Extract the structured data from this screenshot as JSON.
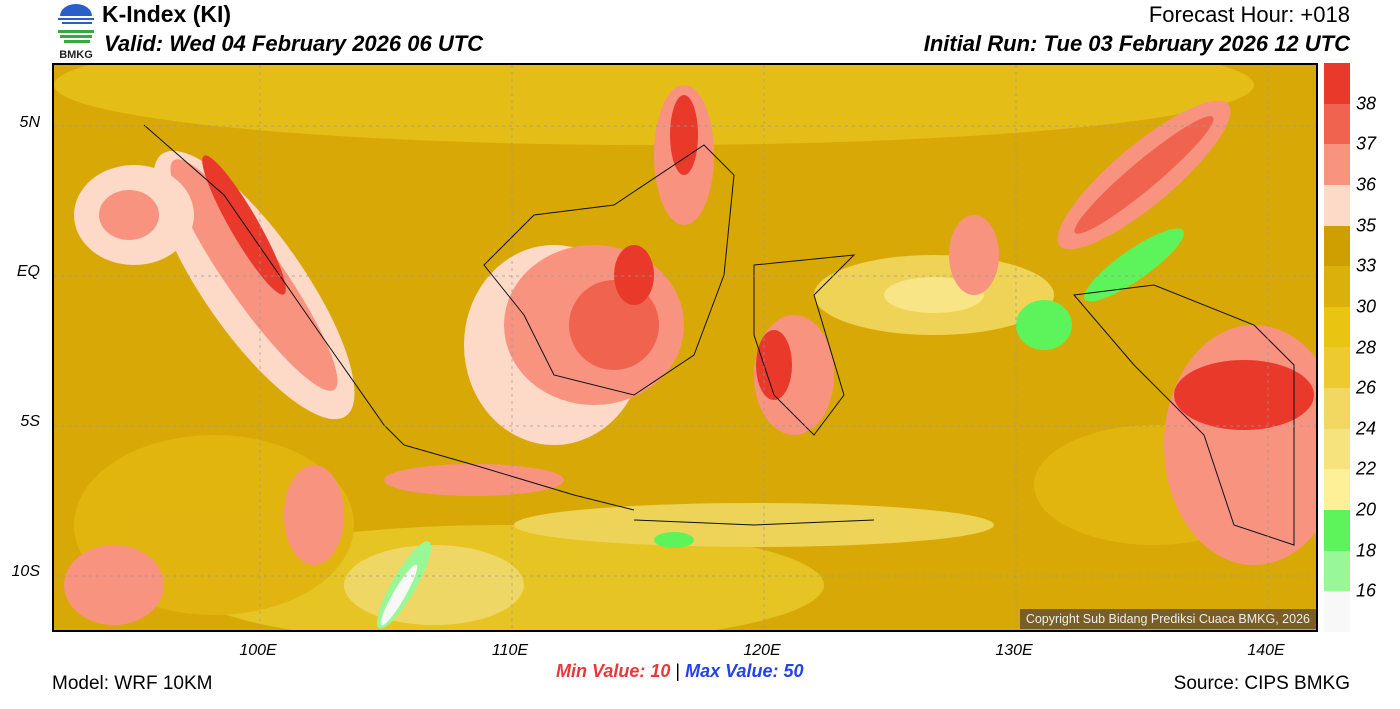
{
  "header": {
    "title": "K-Index (KI)",
    "valid": "Valid: Wed 04 February 2026 06 UTC",
    "forecast_hour": "Forecast Hour: +018",
    "initial_run": "Initial Run: Tue 03 February 2026 12 UTC",
    "logo_text": "BMKG"
  },
  "map": {
    "lat_labels": [
      "5N",
      "EQ",
      "5S",
      "10S"
    ],
    "lon_labels": [
      "100E",
      "110E",
      "120E",
      "130E",
      "140E"
    ],
    "copyright": "Copyright Sub Bidang Prediksi Cuaca BMKG, 2026"
  },
  "colorbar": {
    "labels": [
      "38",
      "37",
      "36",
      "35",
      "33",
      "30",
      "28",
      "26",
      "24",
      "22",
      "20",
      "18",
      "16"
    ],
    "colors": [
      "#e8392a",
      "#f0644f",
      "#f89380",
      "#fdd9c8",
      "#cf9e00",
      "#dcb00a",
      "#e8c510",
      "#ecca30",
      "#f2d860",
      "#f7e37e",
      "#fdf097",
      "#5cf45a",
      "#98f898",
      "#f8f8f8"
    ]
  },
  "footer": {
    "min_label": "Min Value:",
    "min_value": "10",
    "sep": "|",
    "max_label": "Max Value:",
    "max_value": "50",
    "model": "Model: WRF 10KM",
    "source": "Source: CIPS BMKG"
  }
}
